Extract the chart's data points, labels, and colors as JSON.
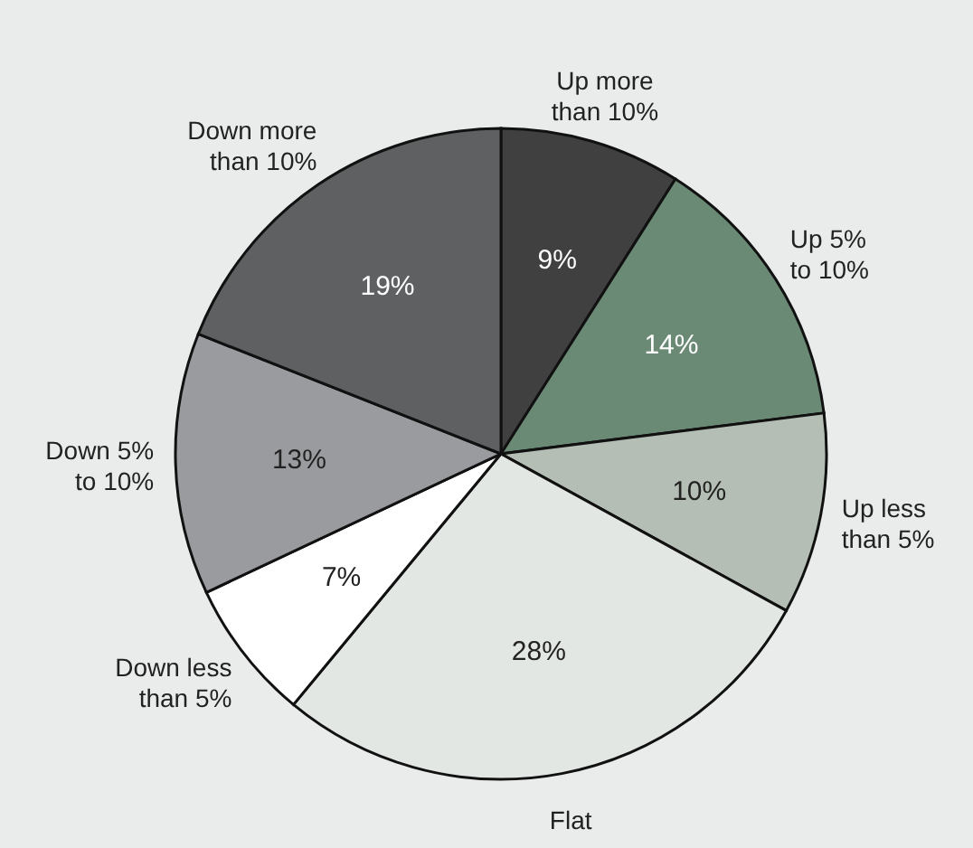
{
  "chart_data": {
    "type": "pie",
    "categories": [
      "Up more than 10%",
      "Up 5% to 10%",
      "Up less than 5%",
      "Flat",
      "Down less than 5%",
      "Down 5% to 10%",
      "Down more than 10%"
    ],
    "values": [
      9,
      14,
      10,
      28,
      7,
      13,
      19
    ],
    "value_labels": [
      "9%",
      "14%",
      "10%",
      "28%",
      "7%",
      "13%",
      "19%"
    ],
    "colors": [
      "#404040",
      "#6b8a76",
      "#b4beb4",
      "#e3e7e3",
      "#ffffff",
      "#9a9b9e",
      "#5f6062"
    ],
    "legend": false
  }
}
